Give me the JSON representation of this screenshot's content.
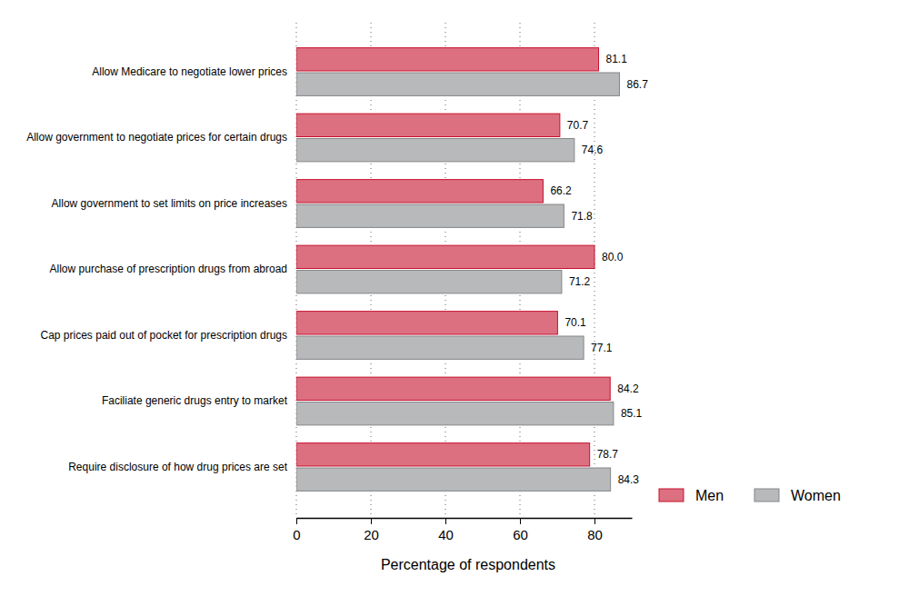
{
  "chart_data": {
    "type": "bar",
    "orientation": "horizontal",
    "categories": [
      "Allow Medicare to negotiate lower prices",
      "Allow government to negotiate prices for certain drugs",
      "Allow government to set limits on price increases",
      "Allow purchase of prescription drugs from abroad",
      "Cap prices paid out of pocket for prescription drugs",
      "Faciliate generic drugs entry to market",
      "Require disclosure of how drug prices are set"
    ],
    "series": [
      {
        "name": "Men",
        "color": "#dc7080",
        "values": [
          81.1,
          70.7,
          66.2,
          80.0,
          70.1,
          84.2,
          78.7
        ],
        "value_labels": [
          "81.1",
          "70.7",
          "66.2",
          "80.0",
          "70.1",
          "84.2",
          "78.7"
        ]
      },
      {
        "name": "Women",
        "color": "#b8b9bb",
        "values": [
          86.7,
          74.6,
          71.8,
          71.2,
          77.1,
          85.1,
          84.3
        ],
        "value_labels": [
          "86.7",
          "74.6",
          "71.8",
          "71.2",
          "77.1",
          "85.1",
          "84.3"
        ]
      }
    ],
    "x_label": "Percentage of respondents",
    "xlim": [
      0,
      90
    ],
    "xticks": [
      0,
      20,
      40,
      60,
      80
    ],
    "grid": true,
    "data_labels": true,
    "legend": "bottom-right"
  }
}
